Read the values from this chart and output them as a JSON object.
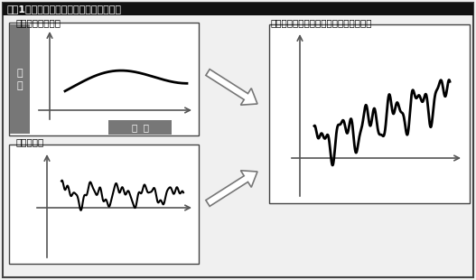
{
  "title": "【図1】センサの測定信号とノイズの関係",
  "label_signal": "センサの信号成分",
  "label_noise": "ノイズ成分",
  "label_combined": "合成された計測信号＝センサの測定信号",
  "label_yaxis": "出\n力",
  "label_xaxis": "時  間",
  "bg_color": "#f0f0f0",
  "box_facecolor": "#ffffff",
  "yaxis_label_bg": "#777777",
  "xaxis_label_bg": "#777777",
  "title_bg": "#111111",
  "title_fg": "#ffffff"
}
